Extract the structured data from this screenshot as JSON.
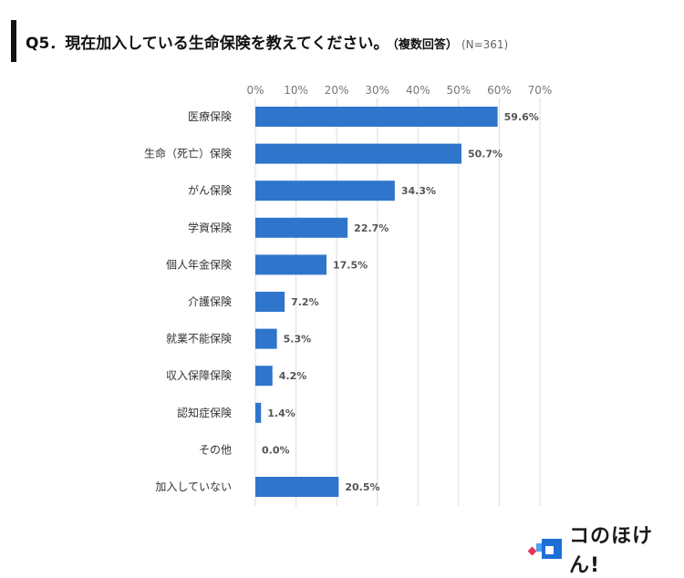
{
  "header": {
    "title": "Q5．現在加入している生命保険を教えてください。",
    "subtitle": "（複数回答）",
    "sample": "(N=361)"
  },
  "colors": {
    "bar": "#2f75cc",
    "grid": "#dddddd",
    "title_accent": "#111111"
  },
  "logo": {
    "text": "コのほけん!"
  },
  "chart_data": {
    "type": "bar",
    "orientation": "horizontal",
    "title": "Q5．現在加入している生命保険を教えてください。（複数回答）(N=361)",
    "categories": [
      "医療保険",
      "生命（死亡）保険",
      "がん保険",
      "学資保険",
      "個人年金保険",
      "介護保険",
      "就業不能保険",
      "収入保障保険",
      "認知症保険",
      "その他",
      "加入していない"
    ],
    "values": [
      59.6,
      50.7,
      34.3,
      22.7,
      17.5,
      7.2,
      5.3,
      4.2,
      1.4,
      0.0,
      20.5
    ],
    "value_labels": [
      "59.6%",
      "50.7%",
      "34.3%",
      "22.7%",
      "17.5%",
      "7.2%",
      "5.3%",
      "4.2%",
      "1.4%",
      "0.0%",
      "20.5%"
    ],
    "xlim": [
      0,
      70
    ],
    "ticks": [
      0,
      10,
      20,
      30,
      40,
      50,
      60,
      70
    ],
    "tick_labels": [
      "0%",
      "10%",
      "20%",
      "30%",
      "40%",
      "50%",
      "60%",
      "70%"
    ],
    "xlabel": "",
    "ylabel": "",
    "grid": true
  }
}
